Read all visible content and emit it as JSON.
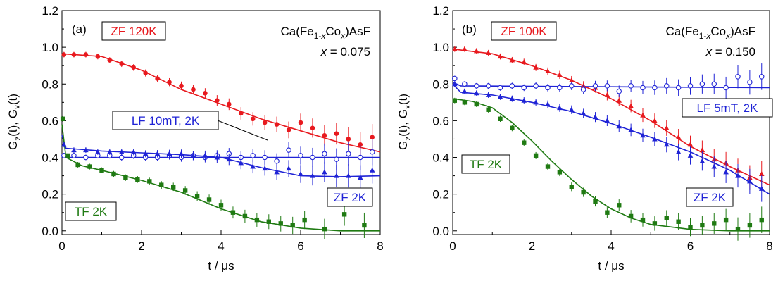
{
  "colors": {
    "red": "#e8191e",
    "blue": "#1f23d6",
    "green": "#1f7a12",
    "axis": "#000000"
  },
  "chart_data": [
    {
      "type": "scatter",
      "panel_label": "(a)",
      "compound_html": "Ca(Fe<tspan font-size=\"13\" dy=\"4\">1-</tspan><tspan font-size=\"13\" font-style=\"italic\">x</tspan><tspan dy=\"-4\">Co</tspan><tspan font-size=\"13\" font-style=\"italic\" dy=\"4\">x</tspan><tspan dy=\"-4\">)AsF</tspan>",
      "compound": "Ca(Fe1-xCox)AsF",
      "composition": "x = 0.075",
      "xlabel": "t / μs",
      "ylabel": "Gz(t), Gx(t)",
      "xlim": [
        0,
        8
      ],
      "ylim": [
        -0.02,
        1.2
      ],
      "xticks": [
        "0",
        "2",
        "4",
        "6",
        "8"
      ],
      "yticks": [
        "0.0",
        "0.2",
        "0.4",
        "0.6",
        "0.8",
        "1.0",
        "1.2"
      ],
      "series": [
        {
          "name": "ZF 120K",
          "color": "red",
          "marker": "circle",
          "x": [
            0.05,
            0.3,
            0.6,
            0.9,
            1.2,
            1.5,
            1.8,
            2.1,
            2.4,
            2.7,
            3.0,
            3.3,
            3.6,
            3.9,
            4.2,
            4.5,
            4.8,
            5.1,
            5.4,
            5.7,
            6.0,
            6.3,
            6.6,
            6.9,
            7.2,
            7.5,
            7.8
          ],
          "y": [
            0.96,
            0.96,
            0.96,
            0.95,
            0.93,
            0.91,
            0.89,
            0.86,
            0.83,
            0.81,
            0.79,
            0.77,
            0.75,
            0.71,
            0.69,
            0.64,
            0.61,
            0.59,
            0.58,
            0.55,
            0.59,
            0.56,
            0.52,
            0.53,
            0.5,
            0.47,
            0.51
          ],
          "fit": [
            [
              0,
              0.965
            ],
            [
              1,
              0.95
            ],
            [
              2,
              0.875
            ],
            [
              3,
              0.77
            ],
            [
              4,
              0.69
            ],
            [
              5,
              0.61
            ],
            [
              6,
              0.545
            ],
            [
              7,
              0.48
            ],
            [
              8,
              0.43
            ]
          ]
        },
        {
          "name": "LF 10mT, 2K",
          "color": "blue",
          "marker": "circle-open",
          "x": [
            0.05,
            0.3,
            0.6,
            0.9,
            1.2,
            1.5,
            1.8,
            2.1,
            2.4,
            2.7,
            3.0,
            3.3,
            3.6,
            3.9,
            4.2,
            4.5,
            4.8,
            5.1,
            5.4,
            5.7,
            6.0,
            6.3,
            6.6,
            6.9,
            7.2,
            7.5,
            7.8
          ],
          "y": [
            0.41,
            0.41,
            0.4,
            0.41,
            0.41,
            0.4,
            0.41,
            0.4,
            0.4,
            0.41,
            0.4,
            0.41,
            0.4,
            0.41,
            0.42,
            0.4,
            0.41,
            0.4,
            0.38,
            0.44,
            0.41,
            0.4,
            0.42,
            0.39,
            0.42,
            0.4,
            0.43
          ],
          "fit": [
            [
              0,
              0.4
            ],
            [
              8,
              0.4
            ]
          ]
        },
        {
          "name": "ZF 2K",
          "color": "blue",
          "marker": "triangle",
          "x": [
            0.05,
            0.3,
            0.6,
            0.9,
            1.2,
            1.5,
            1.8,
            2.1,
            2.4,
            2.7,
            3.0,
            3.3,
            3.6,
            3.9,
            4.2,
            4.5,
            4.8,
            5.1,
            5.4,
            5.7,
            6.0,
            6.3,
            6.6,
            6.9,
            7.2,
            7.5,
            7.8
          ],
          "y": [
            0.47,
            0.44,
            0.44,
            0.43,
            0.43,
            0.43,
            0.43,
            0.42,
            0.42,
            0.42,
            0.42,
            0.41,
            0.41,
            0.4,
            0.39,
            0.37,
            0.35,
            0.34,
            0.32,
            0.34,
            0.31,
            0.3,
            0.32,
            0.3,
            0.3,
            0.29,
            0.33
          ],
          "fit": [
            [
              0,
              0.52
            ],
            [
              0.1,
              0.45
            ],
            [
              1,
              0.435
            ],
            [
              2,
              0.425
            ],
            [
              3,
              0.415
            ],
            [
              4,
              0.4
            ],
            [
              5,
              0.345
            ],
            [
              6,
              0.3
            ],
            [
              7,
              0.295
            ],
            [
              8,
              0.3
            ]
          ]
        },
        {
          "name": "TF 2K",
          "color": "green",
          "marker": "square",
          "x": [
            0.02,
            0.15,
            0.4,
            0.7,
            1.0,
            1.3,
            1.6,
            1.9,
            2.2,
            2.5,
            2.8,
            3.1,
            3.4,
            3.7,
            4.0,
            4.3,
            4.6,
            4.9,
            5.2,
            5.5,
            5.8,
            6.1,
            6.6,
            7.1,
            7.6
          ],
          "y": [
            0.61,
            0.41,
            0.36,
            0.35,
            0.33,
            0.31,
            0.29,
            0.28,
            0.27,
            0.25,
            0.24,
            0.22,
            0.19,
            0.17,
            0.14,
            0.1,
            0.08,
            0.06,
            0.05,
            0.04,
            0.03,
            0.06,
            0.01,
            0.09,
            0.03
          ],
          "fit": [
            [
              0,
              0.58
            ],
            [
              0.1,
              0.4
            ],
            [
              0.5,
              0.355
            ],
            [
              1,
              0.33
            ],
            [
              2,
              0.275
            ],
            [
              3,
              0.21
            ],
            [
              4,
              0.12
            ],
            [
              5,
              0.05
            ],
            [
              6,
              0.015
            ],
            [
              7,
              0.0
            ],
            [
              8,
              0.0
            ]
          ]
        }
      ],
      "annotations": [
        {
          "text": "ZF 120K",
          "color": "red"
        },
        {
          "text": "LF 10mT, 2K",
          "color": "blue"
        },
        {
          "text": "ZF 2K",
          "color": "blue"
        },
        {
          "text": "TF 2K",
          "color": "green"
        }
      ]
    },
    {
      "type": "scatter",
      "panel_label": "(b)",
      "compound": "Ca(Fe1-xCox)AsF",
      "composition": "x = 0.150",
      "xlabel": "t / μs",
      "ylabel": "Gz(t), Gx(t)",
      "xlim": [
        0,
        8
      ],
      "ylim": [
        -0.02,
        1.2
      ],
      "xticks": [
        "0",
        "2",
        "4",
        "6",
        "8"
      ],
      "yticks": [
        "0.0",
        "0.2",
        "0.4",
        "0.6",
        "0.8",
        "1.0",
        "1.2"
      ],
      "series": [
        {
          "name": "ZF 100K",
          "color": "red",
          "marker": "triangle",
          "x": [
            0.05,
            0.3,
            0.6,
            0.9,
            1.2,
            1.5,
            1.8,
            2.1,
            2.4,
            2.7,
            3.0,
            3.3,
            3.6,
            3.9,
            4.2,
            4.5,
            4.8,
            5.1,
            5.4,
            5.7,
            6.0,
            6.3,
            6.6,
            6.9,
            7.2,
            7.5,
            7.8
          ],
          "y": [
            0.99,
            0.99,
            0.98,
            0.97,
            0.95,
            0.93,
            0.92,
            0.89,
            0.87,
            0.85,
            0.82,
            0.79,
            0.78,
            0.74,
            0.71,
            0.68,
            0.63,
            0.6,
            0.56,
            0.51,
            0.47,
            0.44,
            0.39,
            0.37,
            0.33,
            0.29,
            0.31
          ],
          "fit": [
            [
              0,
              0.99
            ],
            [
              1,
              0.965
            ],
            [
              2,
              0.9
            ],
            [
              3,
              0.82
            ],
            [
              4,
              0.72
            ],
            [
              5,
              0.6
            ],
            [
              6,
              0.46
            ],
            [
              7,
              0.35
            ],
            [
              8,
              0.25
            ]
          ]
        },
        {
          "name": "LF 5mT, 2K",
          "color": "blue",
          "marker": "circle-open",
          "x": [
            0.05,
            0.3,
            0.6,
            0.9,
            1.2,
            1.5,
            1.8,
            2.1,
            2.4,
            2.7,
            3.0,
            3.3,
            3.6,
            3.9,
            4.2,
            4.5,
            4.8,
            5.1,
            5.4,
            5.7,
            6.0,
            6.3,
            6.6,
            6.9,
            7.2,
            7.5,
            7.8
          ],
          "y": [
            0.83,
            0.8,
            0.79,
            0.79,
            0.78,
            0.79,
            0.78,
            0.79,
            0.78,
            0.78,
            0.79,
            0.77,
            0.79,
            0.79,
            0.76,
            0.79,
            0.78,
            0.78,
            0.79,
            0.78,
            0.79,
            0.8,
            0.8,
            0.78,
            0.84,
            0.81,
            0.84
          ],
          "fit": [
            [
              0,
              0.81
            ],
            [
              0.2,
              0.79
            ],
            [
              8,
              0.78
            ]
          ]
        },
        {
          "name": "ZF 2K",
          "color": "blue",
          "marker": "triangle",
          "x": [
            0.05,
            0.3,
            0.6,
            0.9,
            1.2,
            1.5,
            1.8,
            2.1,
            2.4,
            2.7,
            3.0,
            3.3,
            3.6,
            3.9,
            4.2,
            4.5,
            4.8,
            5.1,
            5.4,
            5.7,
            6.0,
            6.3,
            6.6,
            6.9,
            7.2,
            7.5,
            7.8
          ],
          "y": [
            0.8,
            0.76,
            0.75,
            0.74,
            0.73,
            0.72,
            0.71,
            0.7,
            0.69,
            0.67,
            0.66,
            0.64,
            0.62,
            0.6,
            0.57,
            0.55,
            0.52,
            0.5,
            0.47,
            0.43,
            0.41,
            0.38,
            0.35,
            0.32,
            0.3,
            0.27,
            0.23
          ],
          "fit": [
            [
              0,
              0.8
            ],
            [
              0.2,
              0.755
            ],
            [
              1,
              0.74
            ],
            [
              2,
              0.7
            ],
            [
              3,
              0.65
            ],
            [
              4,
              0.585
            ],
            [
              5,
              0.51
            ],
            [
              6,
              0.43
            ],
            [
              7,
              0.33
            ],
            [
              8,
              0.2
            ]
          ]
        },
        {
          "name": "TF 2K",
          "color": "green",
          "marker": "square",
          "x": [
            0.05,
            0.3,
            0.6,
            0.9,
            1.2,
            1.5,
            1.8,
            2.1,
            2.4,
            2.7,
            3.0,
            3.3,
            3.6,
            3.9,
            4.2,
            4.5,
            4.8,
            5.1,
            5.4,
            5.7,
            6.0,
            6.3,
            6.6,
            6.9,
            7.2,
            7.5,
            7.8
          ],
          "y": [
            0.71,
            0.7,
            0.69,
            0.66,
            0.61,
            0.56,
            0.48,
            0.41,
            0.35,
            0.32,
            0.24,
            0.21,
            0.16,
            0.1,
            0.14,
            0.08,
            0.06,
            0.04,
            0.07,
            0.05,
            0.02,
            0.03,
            0.04,
            0.06,
            0.01,
            0.03,
            0.06
          ],
          "fit": [
            [
              0,
              0.72
            ],
            [
              0.5,
              0.705
            ],
            [
              1,
              0.67
            ],
            [
              1.5,
              0.59
            ],
            [
              2,
              0.49
            ],
            [
              2.5,
              0.38
            ],
            [
              3,
              0.28
            ],
            [
              3.5,
              0.19
            ],
            [
              4,
              0.12
            ],
            [
              4.5,
              0.07
            ],
            [
              5,
              0.035
            ],
            [
              6,
              0.008
            ],
            [
              7,
              0.0
            ],
            [
              8,
              0.0
            ]
          ]
        }
      ],
      "annotations": [
        {
          "text": "ZF 100K",
          "color": "red"
        },
        {
          "text": "LF 5mT, 2K",
          "color": "blue"
        },
        {
          "text": "ZF 2K",
          "color": "blue"
        },
        {
          "text": "TF 2K",
          "color": "green"
        }
      ]
    }
  ]
}
